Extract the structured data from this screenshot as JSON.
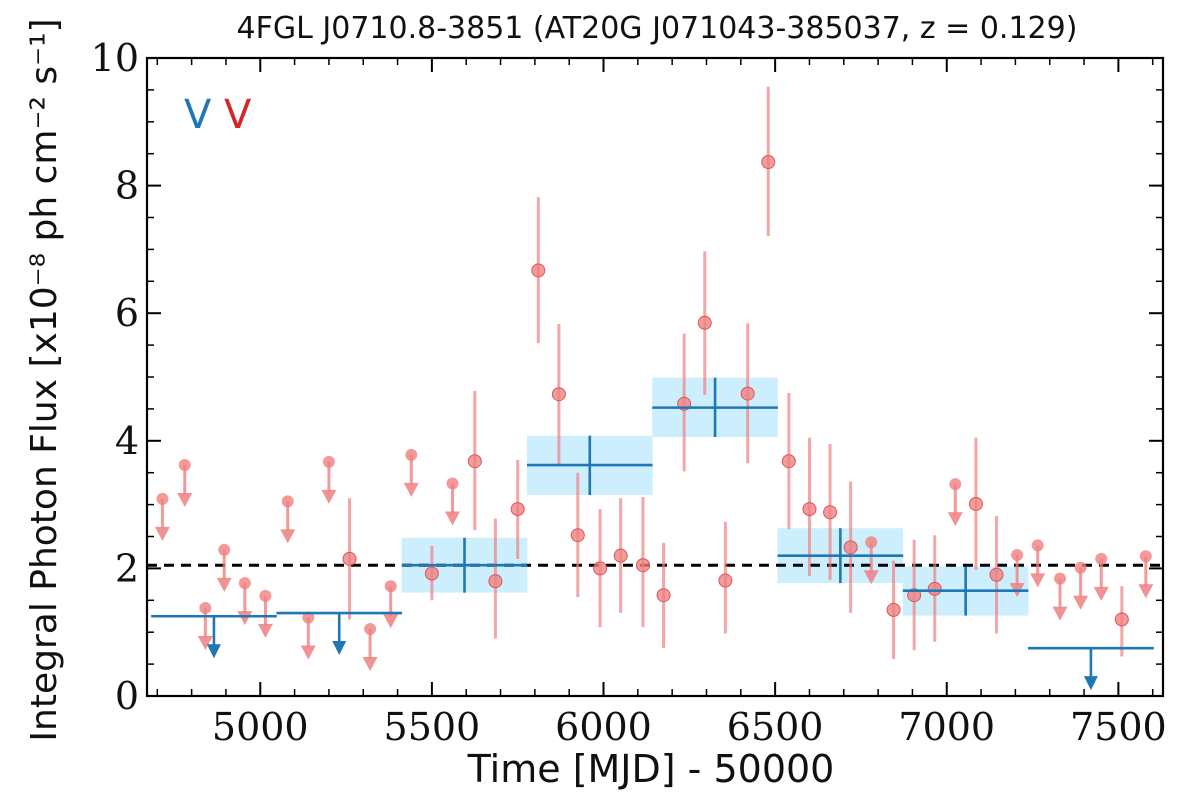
{
  "chart_data": {
    "type": "scatter",
    "title": "4FGL J0710.8-3851 (AT20G J071043-385037, z = 0.129)",
    "xlabel": "Time [MJD] - 50000",
    "ylabel": "Integral Photon Flux [x10⁻⁸ ph cm⁻² s⁻¹]",
    "xlim": [
      4670,
      7630
    ],
    "ylim": [
      0,
      10
    ],
    "xticks": [
      5000,
      5500,
      6000,
      6500,
      7000,
      7500
    ],
    "yticks": [
      0,
      2,
      4,
      6,
      8,
      10
    ],
    "xtick_labels": [
      "5000",
      "5500",
      "6000",
      "6500",
      "7000",
      "7500"
    ],
    "ytick_labels": [
      "0",
      "2",
      "4",
      "6",
      "8",
      "10"
    ],
    "grid": false,
    "legend_position": "top-left",
    "reference_line": {
      "y": 2.05,
      "style": "dashed",
      "color": "#000000"
    },
    "series": [
      {
        "name": "V",
        "color": "#1f77b4",
        "band_color": "#cdeefc",
        "detections": [
          {
            "x": 5595,
            "xerr": 183,
            "y": 2.05,
            "ylo": 1.62,
            "yhi": 2.48
          },
          {
            "x": 5960,
            "xerr": 183,
            "y": 3.62,
            "ylo": 3.15,
            "yhi": 4.08
          },
          {
            "x": 6325,
            "xerr": 183,
            "y": 4.52,
            "ylo": 4.06,
            "yhi": 4.99
          },
          {
            "x": 6690,
            "xerr": 183,
            "y": 2.2,
            "ylo": 1.77,
            "yhi": 2.63
          },
          {
            "x": 7055,
            "xerr": 183,
            "y": 1.65,
            "ylo": 1.26,
            "yhi": 2.03
          }
        ],
        "upper_limits": [
          {
            "x": 4865,
            "xerr": 183,
            "y": 1.25
          },
          {
            "x": 5230,
            "xerr": 183,
            "y": 1.3
          },
          {
            "x": 7420,
            "xerr": 183,
            "y": 0.75
          }
        ]
      },
      {
        "name": "V",
        "color": "#d62728",
        "marker_color": "#f08080",
        "detections": [
          {
            "x": 5260,
            "y": 2.15,
            "ylo": 1.2,
            "yhi": 3.1
          },
          {
            "x": 5500,
            "y": 1.92,
            "ylo": 1.5,
            "yhi": 2.35
          },
          {
            "x": 5625,
            "y": 3.68,
            "ylo": 2.6,
            "yhi": 4.78
          },
          {
            "x": 5685,
            "y": 1.8,
            "ylo": 0.9,
            "yhi": 2.78
          },
          {
            "x": 5750,
            "y": 2.93,
            "ylo": 2.15,
            "yhi": 3.7
          },
          {
            "x": 5810,
            "y": 6.67,
            "ylo": 5.53,
            "yhi": 7.82
          },
          {
            "x": 5870,
            "y": 4.73,
            "ylo": 3.63,
            "yhi": 5.83
          },
          {
            "x": 5925,
            "y": 2.52,
            "ylo": 1.55,
            "yhi": 3.5
          },
          {
            "x": 5990,
            "y": 2.0,
            "ylo": 1.08,
            "yhi": 2.93
          },
          {
            "x": 6050,
            "y": 2.2,
            "ylo": 1.3,
            "yhi": 3.1
          },
          {
            "x": 6115,
            "y": 2.05,
            "ylo": 1.08,
            "yhi": 3.12
          },
          {
            "x": 6175,
            "y": 1.58,
            "ylo": 0.75,
            "yhi": 2.4
          },
          {
            "x": 6235,
            "y": 4.58,
            "ylo": 3.52,
            "yhi": 5.68
          },
          {
            "x": 6295,
            "y": 5.85,
            "ylo": 4.72,
            "yhi": 6.97
          },
          {
            "x": 6355,
            "y": 1.81,
            "ylo": 0.98,
            "yhi": 2.73
          },
          {
            "x": 6420,
            "y": 4.74,
            "ylo": 3.65,
            "yhi": 5.84
          },
          {
            "x": 6480,
            "y": 8.37,
            "ylo": 7.21,
            "yhi": 9.55
          },
          {
            "x": 6540,
            "y": 3.68,
            "ylo": 2.62,
            "yhi": 4.75
          },
          {
            "x": 6600,
            "y": 2.93,
            "ylo": 1.88,
            "yhi": 4.05
          },
          {
            "x": 6660,
            "y": 2.88,
            "ylo": 1.82,
            "yhi": 3.95
          },
          {
            "x": 6720,
            "y": 2.33,
            "ylo": 1.3,
            "yhi": 3.36
          },
          {
            "x": 6845,
            "y": 1.35,
            "ylo": 0.58,
            "yhi": 2.12
          },
          {
            "x": 6905,
            "y": 1.58,
            "ylo": 0.72,
            "yhi": 2.45
          },
          {
            "x": 6965,
            "y": 1.68,
            "ylo": 0.85,
            "yhi": 2.52
          },
          {
            "x": 7085,
            "y": 3.01,
            "ylo": 1.98,
            "yhi": 4.05
          },
          {
            "x": 7145,
            "y": 1.9,
            "ylo": 0.98,
            "yhi": 2.82
          },
          {
            "x": 7510,
            "y": 1.2,
            "ylo": 0.62,
            "yhi": 1.72
          }
        ],
        "upper_limits": [
          {
            "x": 4715,
            "y": 3.09
          },
          {
            "x": 4780,
            "y": 3.62
          },
          {
            "x": 4840,
            "y": 1.38
          },
          {
            "x": 4895,
            "y": 2.29
          },
          {
            "x": 4955,
            "y": 1.77
          },
          {
            "x": 5015,
            "y": 1.57
          },
          {
            "x": 5080,
            "y": 3.05
          },
          {
            "x": 5140,
            "y": 1.23
          },
          {
            "x": 5200,
            "y": 3.67
          },
          {
            "x": 5320,
            "y": 1.05
          },
          {
            "x": 5380,
            "y": 1.72
          },
          {
            "x": 5440,
            "y": 3.78
          },
          {
            "x": 5560,
            "y": 3.33
          },
          {
            "x": 6780,
            "y": 2.41
          },
          {
            "x": 7025,
            "y": 3.32
          },
          {
            "x": 7205,
            "y": 2.21
          },
          {
            "x": 7265,
            "y": 2.36
          },
          {
            "x": 7330,
            "y": 1.84
          },
          {
            "x": 7390,
            "y": 2.01
          },
          {
            "x": 7450,
            "y": 2.15
          },
          {
            "x": 7580,
            "y": 2.19
          }
        ]
      }
    ]
  }
}
